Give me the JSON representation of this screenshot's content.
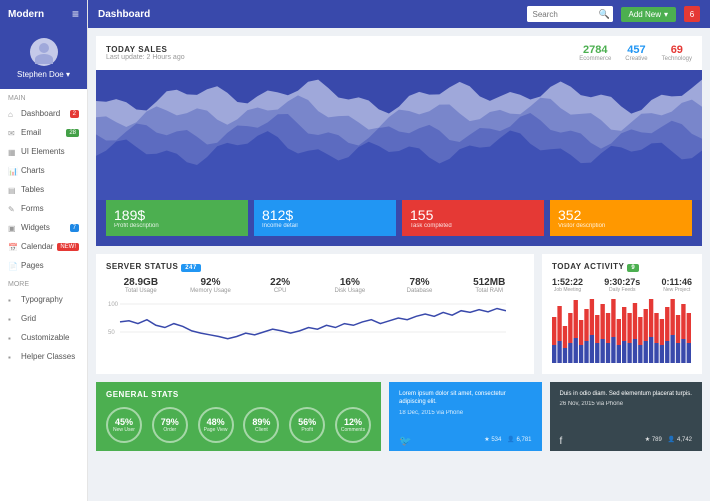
{
  "brand": "Modern",
  "profile": {
    "name": "Stephen Doe"
  },
  "nav": {
    "section1": "MAIN",
    "section2": "MORE",
    "items": [
      {
        "label": "Dashboard",
        "badge": "2",
        "badgeClass": "badge-red"
      },
      {
        "label": "Email",
        "badge": "28",
        "badgeClass": "badge-green"
      },
      {
        "label": "UI Elements"
      },
      {
        "label": "Charts"
      },
      {
        "label": "Tables"
      },
      {
        "label": "Forms"
      },
      {
        "label": "Widgets",
        "badge": "7",
        "badgeClass": "badge-blue"
      },
      {
        "label": "Calendar",
        "badge": "NEW!",
        "badgeClass": "badge-new"
      },
      {
        "label": "Pages"
      }
    ],
    "more": [
      {
        "label": "Typography"
      },
      {
        "label": "Grid"
      },
      {
        "label": "Customizable"
      },
      {
        "label": "Helper Classes"
      }
    ]
  },
  "topbar": {
    "title": "Dashboard",
    "search_placeholder": "Search",
    "add_label": "Add New",
    "notif": "6"
  },
  "sales": {
    "title": "TODAY SALES",
    "update": "Last update: 2 Hours ago",
    "stats": [
      {
        "value": "2784",
        "label": "Ecommerce",
        "class": "stat-green"
      },
      {
        "value": "457",
        "label": "Creative",
        "class": "stat-blue"
      },
      {
        "value": "69",
        "label": "Technology",
        "class": "stat-red"
      }
    ]
  },
  "area_chart": {
    "colors": [
      "#9fa8da",
      "#7986cb",
      "#5c6bc0",
      "#3f51b5"
    ],
    "bg": "#3949ab"
  },
  "kpis": [
    {
      "value": "189$",
      "label": "Profit description",
      "class": "kpi-green"
    },
    {
      "value": "812$",
      "label": "Income detail",
      "class": "kpi-blue"
    },
    {
      "value": "155",
      "label": "Task completed",
      "class": "kpi-red"
    },
    {
      "value": "352",
      "label": "Visitor description",
      "class": "kpi-orange"
    }
  ],
  "server": {
    "title": "SERVER STATUS",
    "badge": "247",
    "stats": [
      {
        "value": "28.9GB",
        "label": "Total Usage"
      },
      {
        "value": "92%",
        "label": "Memory Usage"
      },
      {
        "value": "22%",
        "label": "CPU"
      },
      {
        "value": "16%",
        "label": "Disk Usage"
      },
      {
        "value": "78%",
        "label": "Database"
      },
      {
        "value": "512MB",
        "label": "Total RAM"
      }
    ],
    "line_color": "#3949ab",
    "y_ticks": [
      "100",
      "50",
      "0"
    ],
    "values": [
      68,
      70,
      65,
      72,
      62,
      58,
      65,
      60,
      52,
      48,
      45,
      42,
      38,
      42,
      48,
      45,
      50,
      55,
      52,
      48,
      52,
      58,
      55,
      62,
      58,
      65,
      62,
      68,
      72,
      65,
      70,
      75,
      72,
      78,
      82,
      78,
      85,
      80,
      88,
      85,
      90,
      86,
      92,
      88
    ]
  },
  "activity": {
    "title": "TODAY ACTIVITY",
    "badge": "9",
    "stats": [
      {
        "value": "1:52:22",
        "label": "Job Meeting"
      },
      {
        "value": "9:30:27s",
        "label": "Daily Feeds"
      },
      {
        "value": "0:11:46",
        "label": "New Project"
      }
    ],
    "colors": {
      "red": "#e53935",
      "blue": "#3949ab"
    },
    "red_values": [
      28,
      35,
      22,
      30,
      38,
      25,
      32,
      40,
      28,
      35,
      30,
      38,
      26,
      34,
      30,
      36,
      28,
      32,
      38,
      30,
      26,
      34,
      40,
      28,
      35,
      30
    ],
    "blue_values": [
      18,
      22,
      15,
      20,
      25,
      18,
      22,
      28,
      20,
      24,
      20,
      26,
      18,
      22,
      20,
      24,
      18,
      22,
      26,
      20,
      18,
      22,
      28,
      20,
      24,
      20
    ]
  },
  "general": {
    "title": "GENERAL STATS",
    "circles": [
      {
        "value": "45%",
        "label": "New User"
      },
      {
        "value": "79%",
        "label": "Order"
      },
      {
        "value": "48%",
        "label": "Page View"
      },
      {
        "value": "89%",
        "label": "Client"
      },
      {
        "value": "56%",
        "label": "Profit"
      },
      {
        "value": "12%",
        "label": "Comments"
      }
    ]
  },
  "social": [
    {
      "text": "Lorem ipsum dolor sit amet, consectetur adipiscing elit.",
      "date": "18 Dec, 2015 via Phone",
      "icon": "🐦",
      "s1": "534",
      "s2": "6,781",
      "bg": "social-blue"
    },
    {
      "text": "Duis in odio diam. Sed elementum placerat turpis.",
      "date": "26 Nov, 2015 via Phone",
      "icon": "f",
      "s1": "789",
      "s2": "4,742",
      "bg": "social-dark"
    }
  ]
}
